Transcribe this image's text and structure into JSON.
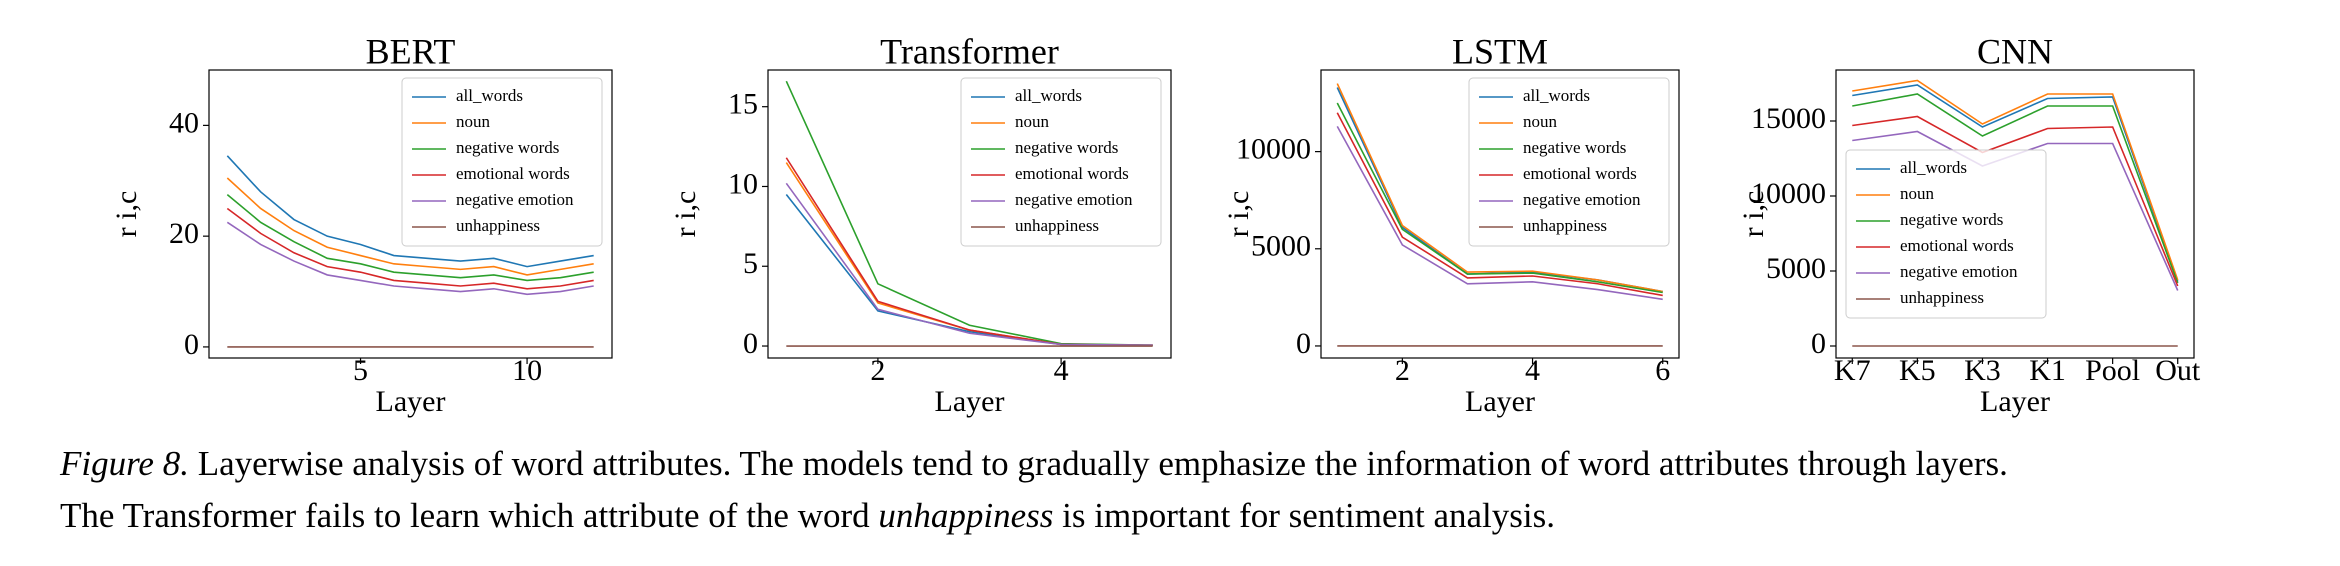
{
  "chart_data": [
    {
      "type": "line",
      "title": "BERT",
      "x_label": "Layer",
      "y_label": "r i,c",
      "x": [
        1,
        2,
        3,
        4,
        5,
        6,
        7,
        8,
        9,
        10,
        11,
        12
      ],
      "xlim": [
        0.45,
        12.55
      ],
      "xticks": [
        5,
        10
      ],
      "ylim": [
        -2,
        50
      ],
      "yticks": [
        0,
        20,
        40
      ],
      "legend": "upper right",
      "series": [
        {
          "name": "all_words",
          "color": "#1f77b4",
          "values": [
            34.5,
            28,
            23,
            20,
            18.5,
            16.5,
            16,
            15.5,
            16,
            14.5,
            15.5,
            16.5
          ]
        },
        {
          "name": "noun",
          "color": "#ff7f0e",
          "values": [
            30.5,
            25,
            21,
            18,
            16.5,
            15,
            14.5,
            14,
            14.5,
            13,
            14,
            15
          ]
        },
        {
          "name": "negative words",
          "color": "#2ca02c",
          "values": [
            27.5,
            22.5,
            19,
            16,
            15,
            13.5,
            13,
            12.5,
            13,
            12,
            12.5,
            13.5
          ]
        },
        {
          "name": "emotional words",
          "color": "#d62728",
          "values": [
            25,
            20.5,
            17,
            14.5,
            13.5,
            12,
            11.5,
            11,
            11.5,
            10.5,
            11,
            12
          ]
        },
        {
          "name": "negative emotion",
          "color": "#9467bd",
          "values": [
            22.5,
            18.5,
            15.5,
            13,
            12,
            11,
            10.5,
            10,
            10.5,
            9.5,
            10,
            11
          ]
        },
        {
          "name": "unhappiness",
          "color": "#8c564b",
          "values": [
            0,
            0,
            0,
            0,
            0,
            0,
            0,
            0,
            0,
            0,
            0,
            0
          ]
        }
      ]
    },
    {
      "type": "line",
      "title": "Transformer",
      "x_label": "Layer",
      "y_label": "r i,c",
      "x": [
        1,
        2,
        3,
        4,
        5
      ],
      "xlim": [
        0.8,
        5.2
      ],
      "xticks": [
        2,
        4
      ],
      "ylim": [
        -0.75,
        17.3
      ],
      "yticks": [
        0,
        5,
        10,
        15
      ],
      "legend": "upper right",
      "series": [
        {
          "name": "all_words",
          "color": "#1f77b4",
          "values": [
            9.5,
            2.2,
            0.9,
            0.1,
            0.05
          ]
        },
        {
          "name": "noun",
          "color": "#ff7f0e",
          "values": [
            11.5,
            2.7,
            1.0,
            0.1,
            0.05
          ]
        },
        {
          "name": "negative words",
          "color": "#2ca02c",
          "values": [
            16.6,
            3.9,
            1.3,
            0.15,
            0.05
          ]
        },
        {
          "name": "emotional words",
          "color": "#d62728",
          "values": [
            11.8,
            2.8,
            1.0,
            0.1,
            0.05
          ]
        },
        {
          "name": "negative emotion",
          "color": "#9467bd",
          "values": [
            10.2,
            2.3,
            0.8,
            0.1,
            0.05
          ]
        },
        {
          "name": "unhappiness",
          "color": "#8c564b",
          "values": [
            0,
            0,
            0,
            0,
            0
          ]
        }
      ]
    },
    {
      "type": "line",
      "title": "LSTM",
      "x_label": "Layer",
      "y_label": "r i,c",
      "x": [
        1,
        2,
        3,
        4,
        5,
        6
      ],
      "xlim": [
        0.75,
        6.25
      ],
      "xticks": [
        2,
        4,
        6
      ],
      "ylim": [
        -620,
        14200
      ],
      "yticks": [
        0,
        5000,
        10000
      ],
      "legend": "upper right",
      "series": [
        {
          "name": "all_words",
          "color": "#1f77b4",
          "values": [
            13300,
            6100,
            3700,
            3800,
            3400,
            2800
          ]
        },
        {
          "name": "noun",
          "color": "#ff7f0e",
          "values": [
            13500,
            6200,
            3800,
            3850,
            3400,
            2800
          ]
        },
        {
          "name": "negative words",
          "color": "#2ca02c",
          "values": [
            12500,
            6000,
            3700,
            3750,
            3300,
            2750
          ]
        },
        {
          "name": "emotional words",
          "color": "#d62728",
          "values": [
            12000,
            5600,
            3500,
            3600,
            3200,
            2600
          ]
        },
        {
          "name": "negative emotion",
          "color": "#9467bd",
          "values": [
            11300,
            5200,
            3200,
            3300,
            2900,
            2400
          ]
        },
        {
          "name": "unhappiness",
          "color": "#8c564b",
          "values": [
            0,
            0,
            0,
            0,
            0,
            0
          ]
        }
      ]
    },
    {
      "type": "line",
      "title": "CNN",
      "x_label": "Layer",
      "y_label": "r i,c",
      "categories": [
        "K7",
        "K5",
        "K3",
        "K1",
        "Pool",
        "Out"
      ],
      "ylim": [
        -800,
        18400
      ],
      "yticks": [
        0,
        5000,
        10000,
        15000
      ],
      "legend": "center left",
      "series": [
        {
          "name": "all_words",
          "color": "#1f77b4",
          "values": [
            16700,
            17400,
            14600,
            16500,
            16600,
            4300
          ]
        },
        {
          "name": "noun",
          "color": "#ff7f0e",
          "values": [
            17000,
            17700,
            14800,
            16800,
            16800,
            4400
          ]
        },
        {
          "name": "negative words",
          "color": "#2ca02c",
          "values": [
            16000,
            16800,
            14000,
            16000,
            16000,
            4200
          ]
        },
        {
          "name": "emotional words",
          "color": "#d62728",
          "values": [
            14700,
            15300,
            12900,
            14500,
            14600,
            4000
          ]
        },
        {
          "name": "negative emotion",
          "color": "#9467bd",
          "values": [
            13700,
            14300,
            12000,
            13500,
            13500,
            3700
          ]
        },
        {
          "name": "unhappiness",
          "color": "#8c564b",
          "values": [
            0,
            0,
            0,
            0,
            0,
            0
          ]
        }
      ]
    }
  ],
  "caption": {
    "label": "Figure 8.",
    "line1": " Layerwise analysis of word attributes. The models tend to gradually emphasize the information of word attributes through layers.",
    "line2_start": "The Transformer fails to learn which attribute of the word ",
    "emphasis": "unhappiness",
    "line2_end": " is important for sentiment analysis."
  }
}
